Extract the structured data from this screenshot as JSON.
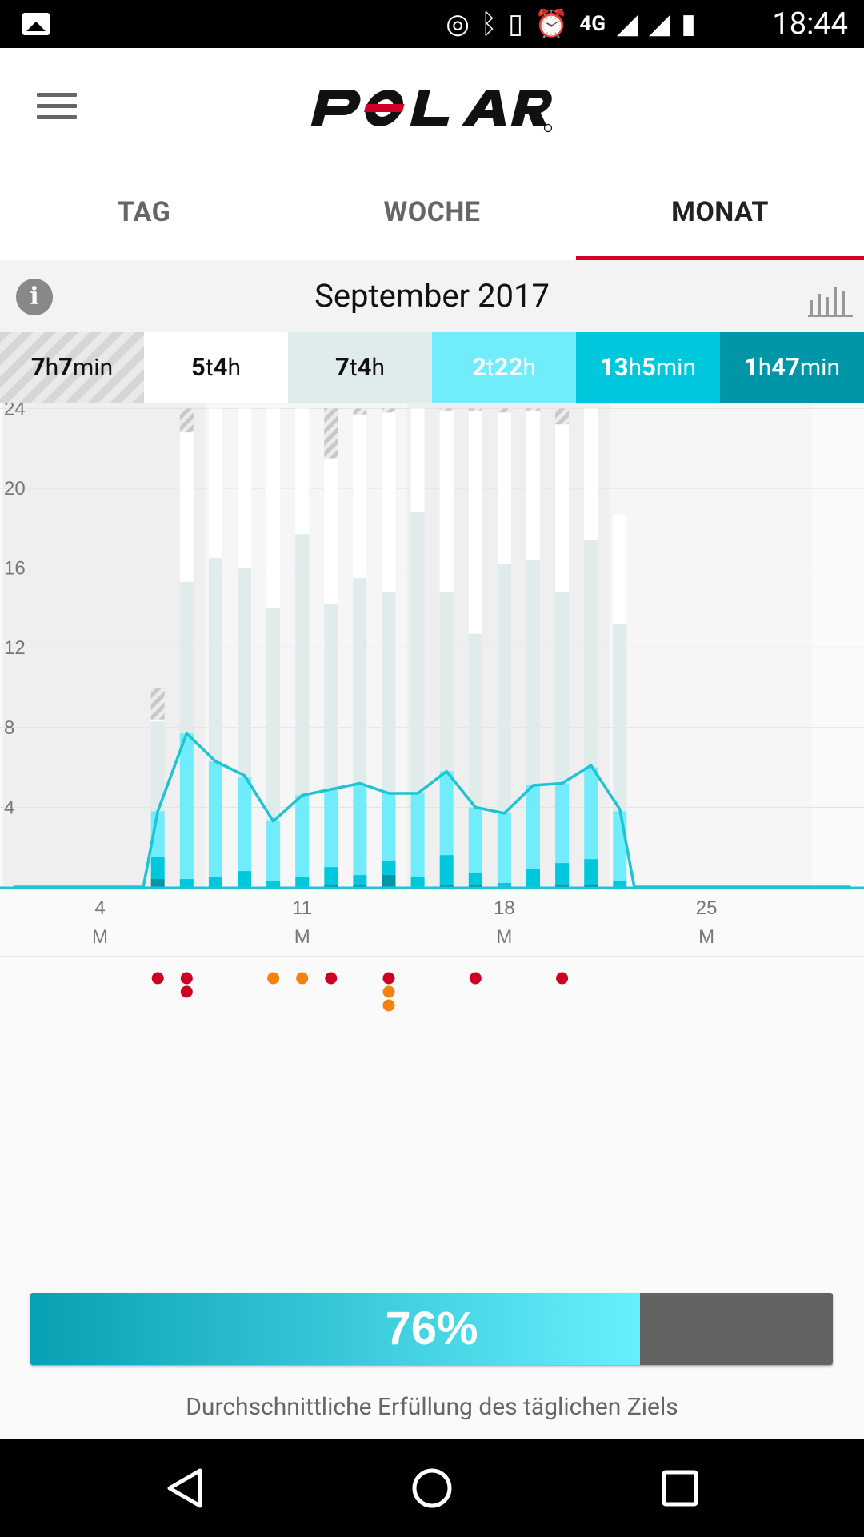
{
  "status_bar": {
    "time": "18:44",
    "network": "4G"
  },
  "tabs": [
    {
      "label": "TAG",
      "active": false
    },
    {
      "label": "WOCHE",
      "active": false
    },
    {
      "label": "MONAT",
      "active": true
    }
  ],
  "month_title": "September 2017",
  "summary": [
    {
      "num1": "7",
      "unit1": "h",
      "num2": "7",
      "unit2": "min"
    },
    {
      "num1": "5",
      "unit1": "t",
      "num2": "4",
      "unit2": "h"
    },
    {
      "num1": "7",
      "unit1": "t",
      "num2": "4",
      "unit2": "h"
    },
    {
      "num1": "2",
      "unit1": "t",
      "num2": "22",
      "unit2": "h"
    },
    {
      "num1": "13",
      "unit1": "h",
      "num2": "5",
      "unit2": "min"
    },
    {
      "num1": "1",
      "unit1": "h",
      "num2": "47",
      "unit2": "min"
    }
  ],
  "colors": {
    "accent": "#d10027",
    "light_grey": "#dfeceb",
    "light_cyan": "#70ecfb",
    "cyan": "#00c8dc",
    "dark_cyan": "#0096a8",
    "dot_red": "#cc0022",
    "dot_orange": "#f5820f"
  },
  "chart_data": {
    "type": "bar",
    "ylim": [
      0,
      28
    ],
    "yticks": [
      4,
      8,
      12,
      16,
      20,
      24
    ],
    "xlabels": [
      {
        "day": 4,
        "label": "4",
        "weekday": "M"
      },
      {
        "day": 11,
        "label": "11",
        "weekday": "M"
      },
      {
        "day": 18,
        "label": "18",
        "weekday": "M"
      },
      {
        "day": 25,
        "label": "25",
        "weekday": "M"
      }
    ],
    "days": [
      {
        "day": 6,
        "dark": 0.4,
        "mid": 1.5,
        "light": 3.8,
        "grey": 8.3,
        "white": 8.4,
        "hatch": 10.0
      },
      {
        "day": 7,
        "dark": 0,
        "mid": 0.4,
        "light": 7.7,
        "grey": 15.3,
        "white": 22.8,
        "hatch": 24.0
      },
      {
        "day": 8,
        "dark": 0,
        "mid": 0.5,
        "light": 6.3,
        "grey": 16.5,
        "white": 24.0,
        "hatch": 24.0
      },
      {
        "day": 9,
        "dark": 0,
        "mid": 0.8,
        "light": 5.5,
        "grey": 16.0,
        "white": 24.0,
        "hatch": 24.0
      },
      {
        "day": 10,
        "dark": 0,
        "mid": 0.3,
        "light": 3.3,
        "grey": 14.0,
        "white": 24.0,
        "hatch": 24.0
      },
      {
        "day": 11,
        "dark": 0,
        "mid": 0.5,
        "light": 4.6,
        "grey": 17.7,
        "white": 24.0,
        "hatch": 24.0
      },
      {
        "day": 12,
        "dark": 0.1,
        "mid": 1.0,
        "light": 4.9,
        "grey": 14.2,
        "white": 21.5,
        "hatch": 24.0
      },
      {
        "day": 13,
        "dark": 0.1,
        "mid": 0.6,
        "light": 5.1,
        "grey": 15.5,
        "white": 23.7,
        "hatch": 24.0
      },
      {
        "day": 14,
        "dark": 0.6,
        "mid": 1.3,
        "light": 4.7,
        "grey": 14.8,
        "white": 23.8,
        "hatch": 24.0
      },
      {
        "day": 15,
        "dark": 0,
        "mid": 0.5,
        "light": 4.7,
        "grey": 18.8,
        "white": 24.0,
        "hatch": 24.0
      },
      {
        "day": 16,
        "dark": 0.1,
        "mid": 1.6,
        "light": 5.8,
        "grey": 14.8,
        "white": 23.9,
        "hatch": 24.0
      },
      {
        "day": 17,
        "dark": 0.1,
        "mid": 0.7,
        "light": 4.0,
        "grey": 12.7,
        "white": 23.9,
        "hatch": 24.0
      },
      {
        "day": 18,
        "dark": 0,
        "mid": 0.2,
        "light": 3.7,
        "grey": 16.2,
        "white": 23.8,
        "hatch": 24.0
      },
      {
        "day": 19,
        "dark": 0,
        "mid": 0.9,
        "light": 5.1,
        "grey": 16.4,
        "white": 23.9,
        "hatch": 24.0
      },
      {
        "day": 20,
        "dark": 0.1,
        "mid": 1.2,
        "light": 5.2,
        "grey": 14.8,
        "white": 23.2,
        "hatch": 24.0
      },
      {
        "day": 21,
        "dark": 0.1,
        "mid": 1.4,
        "light": 6.0,
        "grey": 17.4,
        "white": 24.0,
        "hatch": 24.0
      },
      {
        "day": 22,
        "dark": 0,
        "mid": 0.3,
        "light": 3.8,
        "grey": 13.2,
        "white": 18.7,
        "hatch": 18.7
      }
    ],
    "activity_line": [
      {
        "day": 1,
        "value": 0
      },
      {
        "day": 5.5,
        "value": 0
      },
      {
        "day": 6,
        "value": 3.8
      },
      {
        "day": 7,
        "value": 7.7
      },
      {
        "day": 8,
        "value": 6.3
      },
      {
        "day": 9,
        "value": 5.6
      },
      {
        "day": 10,
        "value": 3.3
      },
      {
        "day": 11,
        "value": 4.6
      },
      {
        "day": 12,
        "value": 4.9
      },
      {
        "day": 13,
        "value": 5.2
      },
      {
        "day": 14,
        "value": 4.7
      },
      {
        "day": 15,
        "value": 4.7
      },
      {
        "day": 16,
        "value": 5.8
      },
      {
        "day": 17,
        "value": 4.0
      },
      {
        "day": 18,
        "value": 3.7
      },
      {
        "day": 19,
        "value": 5.1
      },
      {
        "day": 20,
        "value": 5.2
      },
      {
        "day": 21,
        "value": 6.1
      },
      {
        "day": 22,
        "value": 3.9
      },
      {
        "day": 22.5,
        "value": 0
      },
      {
        "day": 30,
        "value": 0
      }
    ],
    "training_dots": [
      {
        "day": 6,
        "row": 0,
        "color": "red"
      },
      {
        "day": 7,
        "row": 0,
        "color": "red"
      },
      {
        "day": 7,
        "row": 1,
        "color": "red"
      },
      {
        "day": 10,
        "row": 0,
        "color": "orange"
      },
      {
        "day": 11,
        "row": 0,
        "color": "orange"
      },
      {
        "day": 12,
        "row": 0,
        "color": "red"
      },
      {
        "day": 14,
        "row": 0,
        "color": "red"
      },
      {
        "day": 14,
        "row": 1,
        "color": "orange"
      },
      {
        "day": 14,
        "row": 2,
        "color": "orange"
      },
      {
        "day": 17,
        "row": 0,
        "color": "red"
      },
      {
        "day": 20,
        "row": 0,
        "color": "red"
      }
    ]
  },
  "progress": {
    "value": 0.76,
    "label": "76%",
    "caption": "Durchschnittliche Erfüllung des täglichen Ziels"
  }
}
